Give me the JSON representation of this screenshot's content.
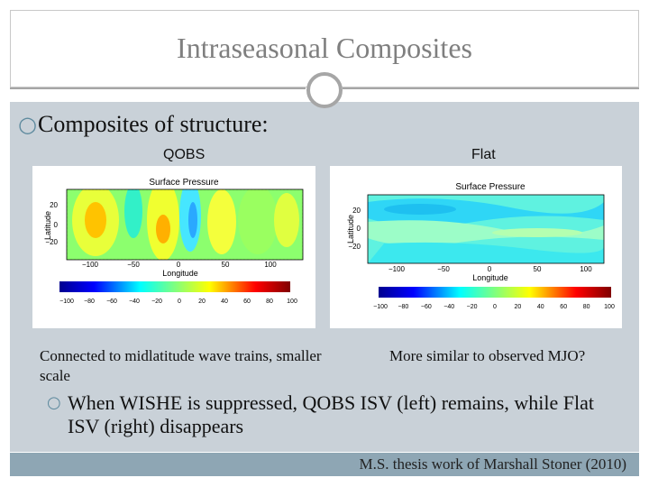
{
  "title": "Intraseasonal Composites",
  "main_bullet": "Composites of structure:",
  "left_panel": {
    "label": "QOBS",
    "plot_title": "Surface Pressure",
    "xlabel": "Longitude",
    "ylabel": "Latitude",
    "x_ticks": [
      "−100",
      "−50",
      "0",
      "50",
      "100"
    ],
    "y_ticks": [
      "20",
      "0",
      "−20"
    ],
    "colorbar_ticks": [
      "−100",
      "−80",
      "−60",
      "−40",
      "−20",
      "0",
      "20",
      "40",
      "60",
      "80",
      "100"
    ],
    "caption": "Connected to midlatitude wave trains, smaller scale"
  },
  "right_panel": {
    "label": "Flat",
    "plot_title": "Surface Pressure",
    "xlabel": "Longitude",
    "ylabel": "Latitude",
    "x_ticks": [
      "−100",
      "−50",
      "0",
      "50",
      "100"
    ],
    "y_ticks": [
      "20",
      "0",
      "−20"
    ],
    "colorbar_ticks": [
      "−100",
      "−80",
      "−60",
      "−40",
      "−20",
      "0",
      "20",
      "40",
      "60",
      "80",
      "100"
    ],
    "caption": "More similar to observed MJO?"
  },
  "sub_bullet": "When WISHE is suppressed, QOBS ISV (left) remains, while Flat ISV (right) disappears",
  "footer": "M.S. thesis work of Marshall Stoner (2010)",
  "icons": {
    "bullet": "hollow-circle-bullet-icon"
  },
  "colors": {
    "accent": "#5e8a9e",
    "band": "#c9d1d8",
    "footer": "#8ea6b4",
    "title": "#7f7f7f"
  }
}
